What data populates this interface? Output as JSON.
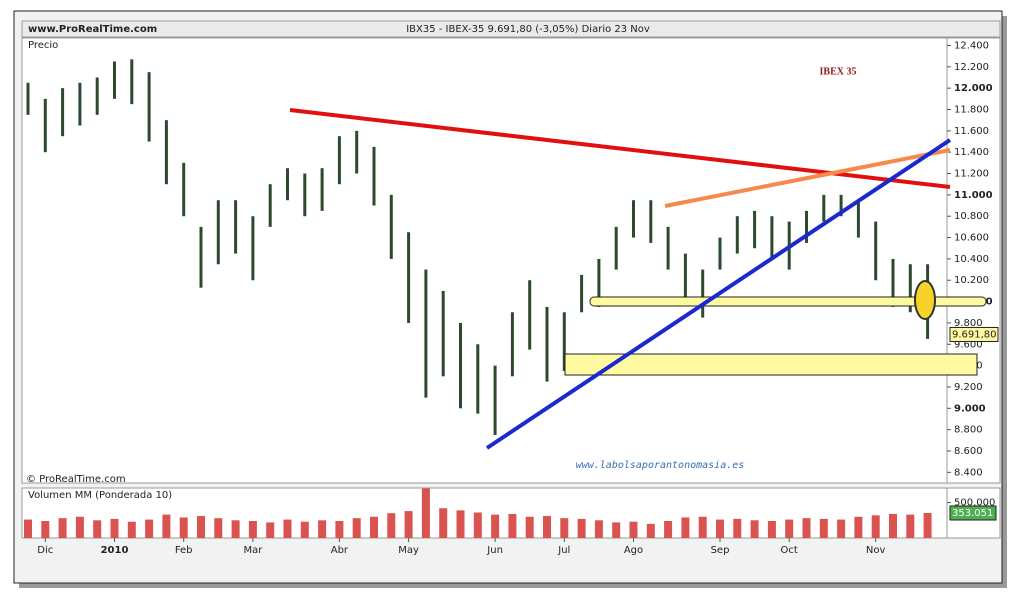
{
  "header": {
    "site": "www.ProRealTime.com",
    "info": "IBX35 - IBEX-35   9.691,80 (-3,05%)   Diario  23 Nov"
  },
  "chart_data": {
    "type": "ohlc",
    "title": "IBEX 35",
    "watermark": "www.labolsaporantonomasia.es",
    "copyright": "© ProRealTime.com",
    "categories": [
      "",
      "Dic",
      null,
      null,
      null,
      "2010",
      null,
      null,
      null,
      "Feb",
      null,
      null,
      null,
      "Mar",
      null,
      null,
      null,
      null,
      "Abr",
      null,
      null,
      null,
      "May",
      null,
      null,
      null,
      null,
      "Jun",
      null,
      null,
      null,
      "Jul",
      null,
      null,
      null,
      "Ago",
      null,
      null,
      null,
      null,
      "Sep",
      null,
      null,
      null,
      "Oct",
      null,
      null,
      null,
      null,
      "Nov",
      null,
      null,
      null
    ],
    "price": {
      "name": "Precio",
      "color": "#2e4a2e",
      "high": [
        12050,
        11900,
        12000,
        12050,
        12100,
        12250,
        12270,
        12150,
        11700,
        11300,
        10700,
        10950,
        10950,
        10800,
        11100,
        11250,
        11200,
        11250,
        11550,
        11600,
        11450,
        11000,
        10650,
        10300,
        10100,
        9800,
        9600,
        9400,
        9900,
        10200,
        9950,
        9900,
        10250,
        10400,
        10700,
        10950,
        10950,
        10700,
        10450,
        10300,
        10600,
        10800,
        10850,
        10800,
        10750,
        10850,
        11000,
        11000,
        10950,
        10750,
        10400,
        10350,
        10350
      ],
      "low": [
        11750,
        11400,
        11550,
        11650,
        11750,
        11900,
        11850,
        11500,
        11100,
        10800,
        10130,
        10350,
        10450,
        10200,
        10700,
        10950,
        10800,
        10850,
        11100,
        11200,
        10900,
        10400,
        9800,
        9100,
        9300,
        9000,
        8950,
        8750,
        9300,
        9550,
        9250,
        9350,
        9900,
        9950,
        10300,
        10600,
        10550,
        10300,
        10000,
        9850,
        10300,
        10450,
        10500,
        10400,
        10300,
        10550,
        10750,
        10800,
        10600,
        10200,
        9950,
        9900,
        9650
      ],
      "last": {
        "value": 9691.8,
        "label": "9.691,80"
      },
      "ylim": [
        8300,
        12470
      ],
      "yticks": [
        {
          "value": 8400,
          "label": "8.400"
        },
        {
          "value": 8600,
          "label": "8.600"
        },
        {
          "value": 8800,
          "label": "8.800"
        },
        {
          "value": 9000,
          "label": "9.000"
        },
        {
          "value": 9200,
          "label": "9.200"
        },
        {
          "value": 9400,
          "label": "9.400"
        },
        {
          "value": 9600,
          "label": "9.600"
        },
        {
          "value": 9800,
          "label": "9.800"
        },
        {
          "value": 10000,
          "label": "10.000"
        },
        {
          "value": 10200,
          "label": "10.200"
        },
        {
          "value": 10400,
          "label": "10.400"
        },
        {
          "value": 10600,
          "label": "10.600"
        },
        {
          "value": 10800,
          "label": "10.800"
        },
        {
          "value": 11000,
          "label": "11.000"
        },
        {
          "value": 11200,
          "label": "11.200"
        },
        {
          "value": 11400,
          "label": "11.400"
        },
        {
          "value": 11600,
          "label": "11.600"
        },
        {
          "value": 11800,
          "label": "11.800"
        },
        {
          "value": 12000,
          "label": "12.000"
        },
        {
          "value": 12200,
          "label": "12.200"
        },
        {
          "value": 12400,
          "label": "12.400"
        }
      ]
    },
    "volume": {
      "name": "Volumen MM (Ponderada 10)",
      "color": "#d9534f",
      "values": [
        260000,
        240000,
        280000,
        300000,
        250000,
        270000,
        230000,
        260000,
        330000,
        290000,
        310000,
        280000,
        250000,
        240000,
        220000,
        260000,
        230000,
        250000,
        240000,
        280000,
        300000,
        350000,
        380000,
        700000,
        420000,
        390000,
        360000,
        330000,
        340000,
        300000,
        310000,
        280000,
        270000,
        250000,
        220000,
        230000,
        200000,
        240000,
        290000,
        300000,
        260000,
        270000,
        250000,
        240000,
        260000,
        280000,
        270000,
        260000,
        300000,
        320000,
        340000,
        330000,
        353051
      ],
      "value_labels_last": "353.051",
      "ylim": [
        0,
        706000
      ],
      "yticks": [
        {
          "value": 500000,
          "label": "500.000"
        }
      ]
    }
  }
}
